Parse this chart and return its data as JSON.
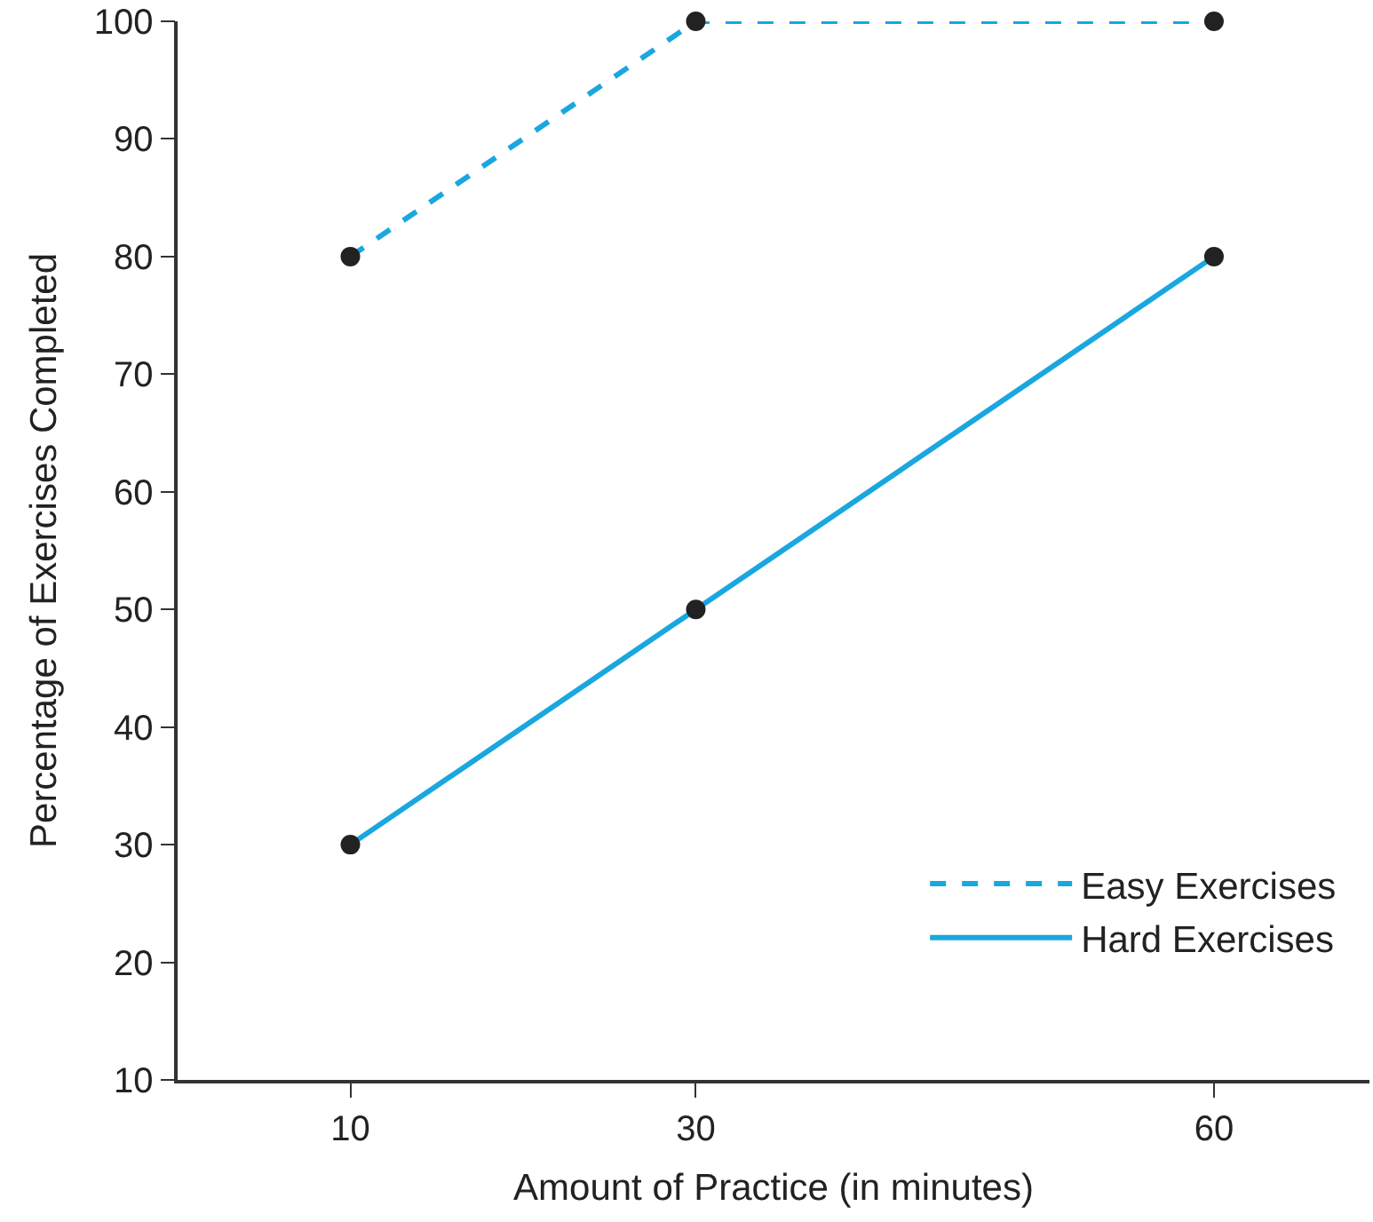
{
  "chart_data": {
    "type": "line",
    "xlabel": "Amount of Practice (in minutes)",
    "ylabel": "Percentage of Exercises Completed",
    "x": [
      10,
      30,
      60
    ],
    "series": [
      {
        "name": "Easy Exercises",
        "color": "#1aa7e0",
        "values": [
          80,
          100,
          100
        ],
        "line_style": "dashed"
      },
      {
        "name": "Hard Exercises",
        "color": "#1aa7e0",
        "values": [
          30,
          50,
          80
        ],
        "line_style": "solid"
      }
    ],
    "xlim": [
      0,
      69
    ],
    "xticks": [
      10,
      30,
      60
    ],
    "ylim": [
      10,
      100
    ],
    "yticks": [
      10,
      20,
      30,
      40,
      50,
      60,
      70,
      80,
      90,
      100
    ],
    "legend": "bottom right",
    "marker": "circle"
  }
}
